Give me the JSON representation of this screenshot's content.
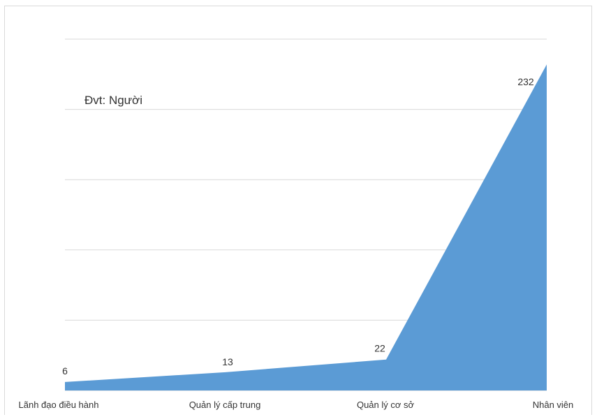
{
  "chart_data": {
    "type": "area",
    "unit_label": "Đvt: Người",
    "categories": [
      "Lãnh đạo điều hành",
      "Quản lý cấp trung",
      "Quản lý cơ sở",
      "Nhân viên"
    ],
    "values": [
      6,
      13,
      22,
      232
    ],
    "ylim": [
      0,
      250
    ],
    "grid": true,
    "colors": {
      "area": "#5b9bd5",
      "grid": "#d9d9d9"
    }
  }
}
